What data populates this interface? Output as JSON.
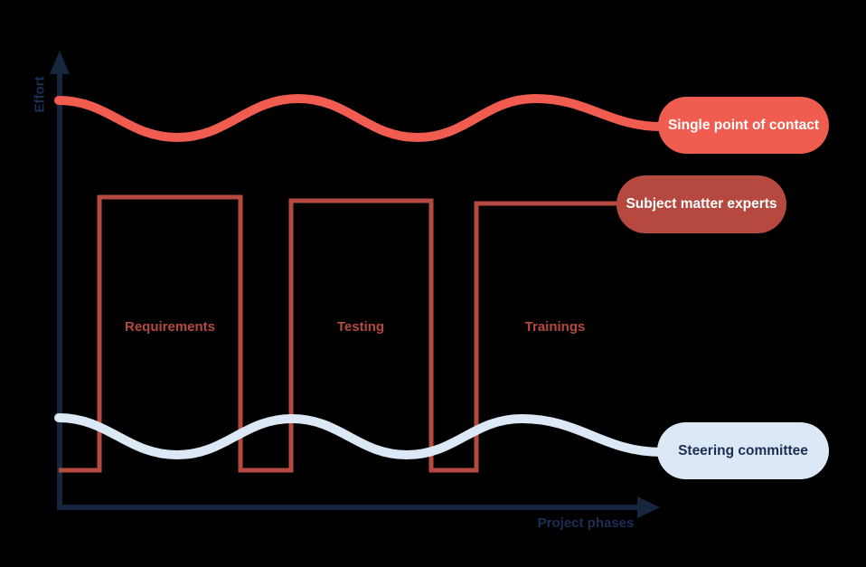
{
  "axes": {
    "y_label": "Effort",
    "x_label": "Project phases"
  },
  "legend": {
    "single_point_of_contact": "Single point of contact",
    "subject_matter_experts": "Subject matter experts",
    "steering_committee": "Steering committee"
  },
  "phase_labels": [
    {
      "label": "Requirements"
    },
    {
      "label": "Testing"
    },
    {
      "label": "Trainings"
    }
  ],
  "colors": {
    "background": "#000000",
    "axis": "#17263f",
    "axis_label_text": "#1b2f55",
    "single_point_of_contact": "#f05c50",
    "subject_matter_experts": "#b5493f",
    "steering_committee": "#dde8f6",
    "badge_text_light": "#ffffff",
    "badge_text_dark": "#1b2f55"
  },
  "chart_data": {
    "type": "line",
    "title": "",
    "xlabel": "Project phases",
    "ylabel": "Effort",
    "grid": false,
    "legend_position": "right-badges",
    "series": [
      {
        "name": "Single point of contact",
        "style": "wave",
        "color": "#f05c50",
        "points": [
          [
            65,
            111
          ],
          [
            196,
            152
          ],
          [
            330,
            109
          ],
          [
            462,
            152
          ],
          [
            592,
            109
          ],
          [
            732,
            140
          ]
        ]
      },
      {
        "name": "Subject matter experts",
        "style": "square-wave",
        "color": "#b5493f",
        "points": [
          [
            65,
            520
          ],
          [
            110,
            520
          ],
          [
            110,
            218
          ],
          [
            266,
            218
          ],
          [
            266,
            520
          ],
          [
            322,
            520
          ],
          [
            322,
            222
          ],
          [
            477,
            222
          ],
          [
            477,
            520
          ],
          [
            527,
            520
          ],
          [
            527,
            225
          ],
          [
            730,
            225
          ]
        ]
      },
      {
        "name": "Steering committee",
        "style": "wave",
        "color": "#dde8f6",
        "points": [
          [
            65,
            462
          ],
          [
            196,
            503
          ],
          [
            323,
            463
          ],
          [
            450,
            503
          ],
          [
            577,
            463
          ],
          [
            732,
            500
          ]
        ]
      }
    ]
  }
}
